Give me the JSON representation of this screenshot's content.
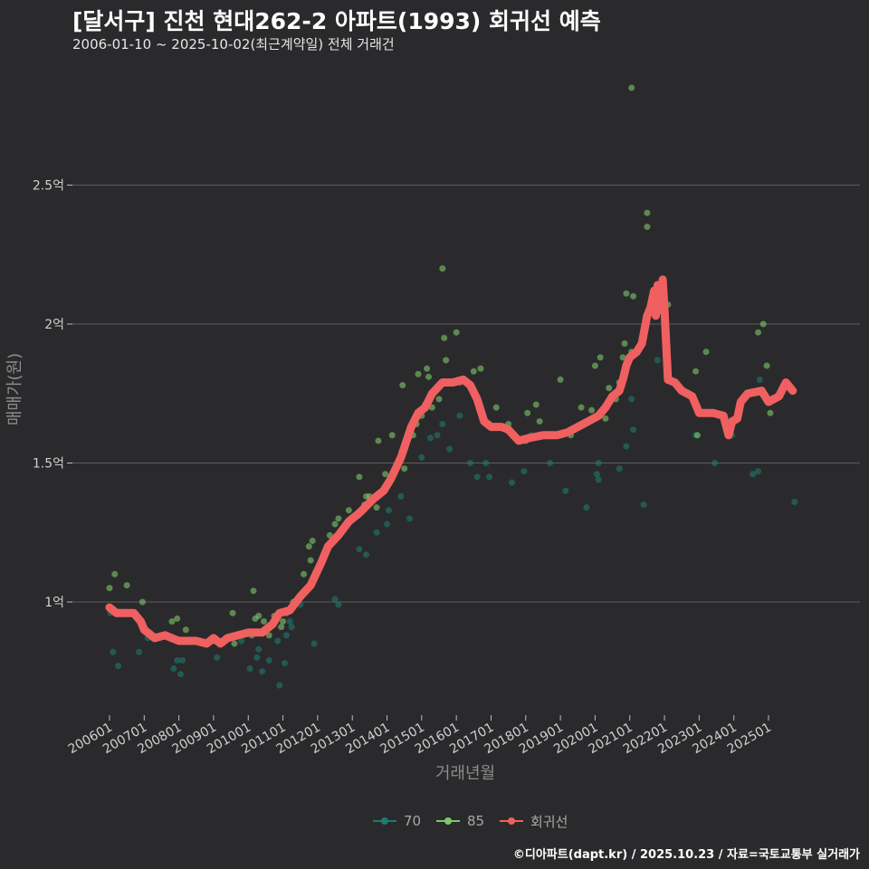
{
  "header": {
    "title": "[달서구] 진천 현대262-2 아파트(1993) 회귀선 예측",
    "subtitle": "2006-01-10 ~ 2025-10-02(최근계약일) 전체 거래건"
  },
  "caption": "©디아파트(dapt.kr) / 2025.10.23 / 자료=국토교통부 실거래가",
  "colors": {
    "background": "#2a2a2c",
    "grid": "#5c5c5c",
    "s70": "#1f7a70",
    "s85": "#7dc96a",
    "regression": "#f06060"
  },
  "chart_data": {
    "type": "scatter",
    "title": "[달서구] 진천 현대262-2 아파트(1993) 회귀선 예측",
    "xlabel": "거래년월",
    "ylabel": "매매가(원)",
    "xlim": [
      2005.8,
      2026.0
    ],
    "ylim": [
      0.58,
      2.85
    ],
    "y_unit": "억",
    "y_ticks": [
      {
        "value": 1.0,
        "label": "1억"
      },
      {
        "value": 1.5,
        "label": "1.5억"
      },
      {
        "value": 2.0,
        "label": "2억"
      },
      {
        "value": 2.5,
        "label": "2.5억"
      }
    ],
    "x_ticks": [
      {
        "value": 2006.0,
        "label": "200601"
      },
      {
        "value": 2007.0,
        "label": "200701"
      },
      {
        "value": 2008.0,
        "label": "200801"
      },
      {
        "value": 2009.0,
        "label": "200901"
      },
      {
        "value": 2010.0,
        "label": "201001"
      },
      {
        "value": 2011.0,
        "label": "201101"
      },
      {
        "value": 2012.0,
        "label": "201201"
      },
      {
        "value": 2013.0,
        "label": "201301"
      },
      {
        "value": 2014.0,
        "label": "201401"
      },
      {
        "value": 2015.0,
        "label": "201501"
      },
      {
        "value": 2016.0,
        "label": "201601"
      },
      {
        "value": 2017.0,
        "label": "201701"
      },
      {
        "value": 2018.0,
        "label": "201801"
      },
      {
        "value": 2019.0,
        "label": "201901"
      },
      {
        "value": 2020.0,
        "label": "202001"
      },
      {
        "value": 2021.0,
        "label": "202101"
      },
      {
        "value": 2022.0,
        "label": "202201"
      },
      {
        "value": 2023.0,
        "label": "202301"
      },
      {
        "value": 2024.0,
        "label": "202401"
      },
      {
        "value": 2025.0,
        "label": "202501"
      }
    ],
    "legend": [
      "70",
      "85",
      "회귀선"
    ],
    "series": [
      {
        "name": "70",
        "points": [
          [
            2006.03,
            0.96
          ],
          [
            2006.1,
            0.82
          ],
          [
            2006.25,
            0.77
          ],
          [
            2006.85,
            0.82
          ],
          [
            2007.1,
            0.87
          ],
          [
            2007.85,
            0.76
          ],
          [
            2007.95,
            0.79
          ],
          [
            2008.05,
            0.74
          ],
          [
            2008.1,
            0.79
          ],
          [
            2008.3,
            0.86
          ],
          [
            2009.1,
            0.8
          ],
          [
            2009.8,
            0.86
          ],
          [
            2010.05,
            0.76
          ],
          [
            2010.25,
            0.8
          ],
          [
            2010.3,
            0.83
          ],
          [
            2010.4,
            0.75
          ],
          [
            2010.6,
            0.79
          ],
          [
            2010.85,
            0.86
          ],
          [
            2010.9,
            0.7
          ],
          [
            2011.05,
            0.78
          ],
          [
            2011.1,
            0.88
          ],
          [
            2011.2,
            0.93
          ],
          [
            2011.25,
            0.91
          ],
          [
            2011.5,
            0.99
          ],
          [
            2011.9,
            0.85
          ],
          [
            2012.5,
            1.01
          ],
          [
            2012.6,
            0.99
          ],
          [
            2013.2,
            1.19
          ],
          [
            2013.4,
            1.17
          ],
          [
            2013.7,
            1.25
          ],
          [
            2014.0,
            1.28
          ],
          [
            2014.05,
            1.33
          ],
          [
            2014.4,
            1.38
          ],
          [
            2014.65,
            1.3
          ],
          [
            2015.0,
            1.52
          ],
          [
            2015.25,
            1.59
          ],
          [
            2015.45,
            1.6
          ],
          [
            2015.6,
            1.64
          ],
          [
            2015.8,
            1.55
          ],
          [
            2016.1,
            1.67
          ],
          [
            2016.4,
            1.5
          ],
          [
            2016.6,
            1.45
          ],
          [
            2016.85,
            1.5
          ],
          [
            2016.95,
            1.45
          ],
          [
            2017.6,
            1.43
          ],
          [
            2017.95,
            1.47
          ],
          [
            2018.15,
            1.6
          ],
          [
            2018.7,
            1.5
          ],
          [
            2019.15,
            1.4
          ],
          [
            2019.75,
            1.34
          ],
          [
            2020.05,
            1.46
          ],
          [
            2020.1,
            1.44
          ],
          [
            2020.1,
            1.5
          ],
          [
            2020.7,
            1.48
          ],
          [
            2020.9,
            1.56
          ],
          [
            2021.05,
            1.73
          ],
          [
            2021.1,
            1.62
          ],
          [
            2021.4,
            1.35
          ],
          [
            2021.8,
            1.87
          ],
          [
            2022.9,
            1.6
          ],
          [
            2023.45,
            1.5
          ],
          [
            2023.95,
            1.6
          ],
          [
            2024.55,
            1.46
          ],
          [
            2024.7,
            1.47
          ],
          [
            2024.75,
            1.8
          ],
          [
            2025.75,
            1.36
          ]
        ]
      },
      {
        "name": "85",
        "points": [
          [
            2006.0,
            1.05
          ],
          [
            2006.15,
            1.1
          ],
          [
            2006.5,
            1.06
          ],
          [
            2006.95,
            1.0
          ],
          [
            2007.8,
            0.93
          ],
          [
            2007.95,
            0.94
          ],
          [
            2008.2,
            0.9
          ],
          [
            2009.0,
            0.86
          ],
          [
            2009.55,
            0.96
          ],
          [
            2009.6,
            0.85
          ],
          [
            2010.1,
            0.88
          ],
          [
            2010.15,
            1.04
          ],
          [
            2010.2,
            0.94
          ],
          [
            2010.3,
            0.95
          ],
          [
            2010.45,
            0.93
          ],
          [
            2010.6,
            0.88
          ],
          [
            2010.75,
            0.95
          ],
          [
            2010.95,
            0.91
          ],
          [
            2011.0,
            0.93
          ],
          [
            2011.1,
            0.96
          ],
          [
            2011.3,
            1.0
          ],
          [
            2011.6,
            1.1
          ],
          [
            2011.75,
            1.2
          ],
          [
            2011.8,
            1.15
          ],
          [
            2011.85,
            1.22
          ],
          [
            2012.2,
            1.17
          ],
          [
            2012.35,
            1.24
          ],
          [
            2012.5,
            1.28
          ],
          [
            2012.6,
            1.3
          ],
          [
            2012.9,
            1.33
          ],
          [
            2013.2,
            1.45
          ],
          [
            2013.35,
            1.35
          ],
          [
            2013.4,
            1.38
          ],
          [
            2013.5,
            1.38
          ],
          [
            2013.7,
            1.34
          ],
          [
            2013.75,
            1.58
          ],
          [
            2013.95,
            1.46
          ],
          [
            2014.15,
            1.6
          ],
          [
            2014.45,
            1.78
          ],
          [
            2014.5,
            1.48
          ],
          [
            2014.75,
            1.6
          ],
          [
            2014.85,
            1.64
          ],
          [
            2014.9,
            1.82
          ],
          [
            2015.0,
            1.67
          ],
          [
            2015.1,
            1.71
          ],
          [
            2015.15,
            1.84
          ],
          [
            2015.2,
            1.81
          ],
          [
            2015.3,
            1.7
          ],
          [
            2015.5,
            1.73
          ],
          [
            2015.6,
            2.2
          ],
          [
            2015.65,
            1.95
          ],
          [
            2015.7,
            1.87
          ],
          [
            2016.0,
            1.97
          ],
          [
            2016.1,
            1.79
          ],
          [
            2016.5,
            1.83
          ],
          [
            2016.7,
            1.84
          ],
          [
            2016.8,
            1.65
          ],
          [
            2017.15,
            1.7
          ],
          [
            2017.5,
            1.64
          ],
          [
            2018.0,
            1.58
          ],
          [
            2018.05,
            1.68
          ],
          [
            2018.3,
            1.71
          ],
          [
            2018.4,
            1.65
          ],
          [
            2019.0,
            1.8
          ],
          [
            2019.3,
            1.6
          ],
          [
            2019.6,
            1.7
          ],
          [
            2019.9,
            1.69
          ],
          [
            2020.0,
            1.85
          ],
          [
            2020.15,
            1.88
          ],
          [
            2020.3,
            1.66
          ],
          [
            2020.4,
            1.77
          ],
          [
            2020.6,
            1.73
          ],
          [
            2020.7,
            1.79
          ],
          [
            2020.8,
            1.88
          ],
          [
            2020.85,
            1.93
          ],
          [
            2020.9,
            2.11
          ],
          [
            2021.05,
            1.9
          ],
          [
            2021.1,
            2.1
          ],
          [
            2021.05,
            2.85
          ],
          [
            2021.5,
            2.4
          ],
          [
            2021.5,
            2.35
          ],
          [
            2021.9,
            2.14
          ],
          [
            2022.1,
            2.07
          ],
          [
            2022.0,
            2.08
          ],
          [
            2023.2,
            1.9
          ],
          [
            2022.9,
            1.83
          ],
          [
            2022.95,
            1.6
          ],
          [
            2024.7,
            1.97
          ],
          [
            2024.85,
            2.0
          ],
          [
            2024.95,
            1.85
          ],
          [
            2025.05,
            1.68
          ]
        ]
      },
      {
        "name": "회귀선",
        "points": [
          [
            2006.0,
            0.98
          ],
          [
            2006.2,
            0.96
          ],
          [
            2006.7,
            0.96
          ],
          [
            2006.9,
            0.93
          ],
          [
            2007.0,
            0.9
          ],
          [
            2007.3,
            0.87
          ],
          [
            2007.6,
            0.88
          ],
          [
            2008.0,
            0.86
          ],
          [
            2008.5,
            0.86
          ],
          [
            2008.8,
            0.85
          ],
          [
            2009.0,
            0.87
          ],
          [
            2009.2,
            0.85
          ],
          [
            2009.4,
            0.87
          ],
          [
            2009.7,
            0.88
          ],
          [
            2010.0,
            0.89
          ],
          [
            2010.4,
            0.89
          ],
          [
            2010.7,
            0.92
          ],
          [
            2010.9,
            0.96
          ],
          [
            2011.2,
            0.97
          ],
          [
            2011.5,
            1.02
          ],
          [
            2011.8,
            1.06
          ],
          [
            2012.1,
            1.14
          ],
          [
            2012.3,
            1.2
          ],
          [
            2012.6,
            1.24
          ],
          [
            2012.9,
            1.29
          ],
          [
            2013.2,
            1.32
          ],
          [
            2013.6,
            1.37
          ],
          [
            2013.9,
            1.4
          ],
          [
            2014.1,
            1.44
          ],
          [
            2014.4,
            1.52
          ],
          [
            2014.7,
            1.63
          ],
          [
            2014.9,
            1.68
          ],
          [
            2015.1,
            1.7
          ],
          [
            2015.3,
            1.75
          ],
          [
            2015.6,
            1.79
          ],
          [
            2015.9,
            1.79
          ],
          [
            2016.2,
            1.8
          ],
          [
            2016.4,
            1.78
          ],
          [
            2016.6,
            1.73
          ],
          [
            2016.8,
            1.65
          ],
          [
            2017.0,
            1.63
          ],
          [
            2017.3,
            1.63
          ],
          [
            2017.5,
            1.62
          ],
          [
            2017.8,
            1.58
          ],
          [
            2018.1,
            1.59
          ],
          [
            2018.5,
            1.6
          ],
          [
            2018.9,
            1.6
          ],
          [
            2019.2,
            1.61
          ],
          [
            2019.5,
            1.63
          ],
          [
            2019.8,
            1.65
          ],
          [
            2020.1,
            1.67
          ],
          [
            2020.3,
            1.7
          ],
          [
            2020.5,
            1.74
          ],
          [
            2020.7,
            1.76
          ],
          [
            2020.8,
            1.8
          ],
          [
            2020.9,
            1.85
          ],
          [
            2021.0,
            1.88
          ],
          [
            2021.2,
            1.9
          ],
          [
            2021.35,
            1.93
          ],
          [
            2021.5,
            2.03
          ],
          [
            2021.6,
            2.06
          ],
          [
            2021.7,
            2.12
          ],
          [
            2021.75,
            2.03
          ],
          [
            2021.8,
            2.14
          ],
          [
            2021.85,
            2.05
          ],
          [
            2021.9,
            2.1
          ],
          [
            2021.95,
            2.16
          ],
          [
            2022.0,
            2.05
          ],
          [
            2022.1,
            1.8
          ],
          [
            2022.3,
            1.79
          ],
          [
            2022.5,
            1.76
          ],
          [
            2022.8,
            1.74
          ],
          [
            2023.0,
            1.68
          ],
          [
            2023.4,
            1.68
          ],
          [
            2023.7,
            1.67
          ],
          [
            2023.85,
            1.6
          ],
          [
            2023.95,
            1.65
          ],
          [
            2024.1,
            1.66
          ],
          [
            2024.2,
            1.72
          ],
          [
            2024.4,
            1.75
          ],
          [
            2024.8,
            1.76
          ],
          [
            2025.0,
            1.72
          ],
          [
            2025.3,
            1.74
          ],
          [
            2025.5,
            1.79
          ],
          [
            2025.7,
            1.76
          ]
        ]
      }
    ]
  }
}
